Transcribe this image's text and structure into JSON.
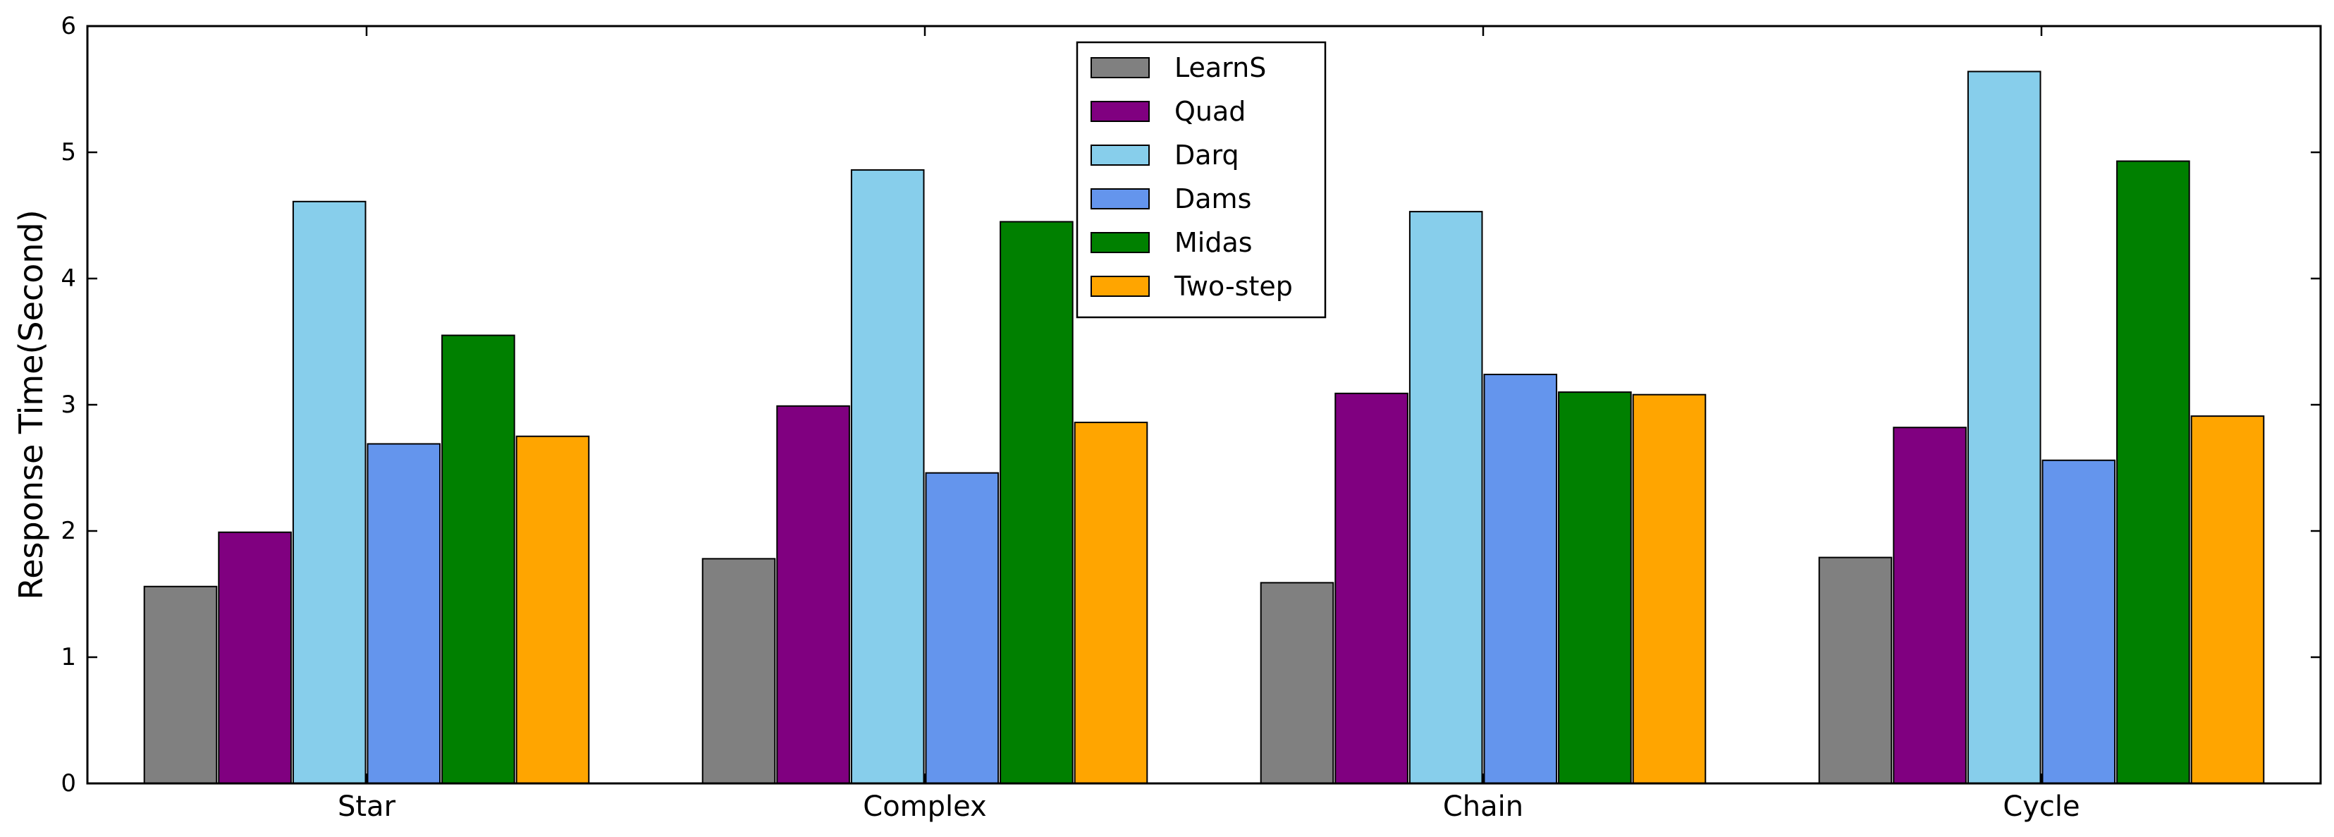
{
  "chart_data": {
    "type": "bar",
    "title": "",
    "xlabel": "",
    "ylabel": "Response Time(Second)",
    "ylim": [
      0,
      6
    ],
    "yticks": [
      0,
      1,
      2,
      3,
      4,
      5,
      6
    ],
    "grid": false,
    "legend_position": "top-center",
    "categories": [
      "Star",
      "Complex",
      "Chain",
      "Cycle"
    ],
    "series": [
      {
        "name": "LearnS",
        "color": "#808080",
        "values": [
          1.56,
          1.78,
          1.59,
          1.79
        ]
      },
      {
        "name": "Quad",
        "color": "#800080",
        "values": [
          1.99,
          2.99,
          3.09,
          2.82
        ]
      },
      {
        "name": "Darq",
        "color": "#87CEEB",
        "values": [
          4.61,
          4.86,
          4.53,
          5.64
        ]
      },
      {
        "name": "Dams",
        "color": "#6495ED",
        "values": [
          2.69,
          2.46,
          3.24,
          2.56
        ]
      },
      {
        "name": "Midas",
        "color": "#008000",
        "values": [
          3.55,
          4.45,
          3.1,
          4.93
        ]
      },
      {
        "name": "Two-step",
        "color": "#FFA500",
        "values": [
          2.75,
          2.86,
          3.08,
          2.91
        ]
      }
    ]
  }
}
